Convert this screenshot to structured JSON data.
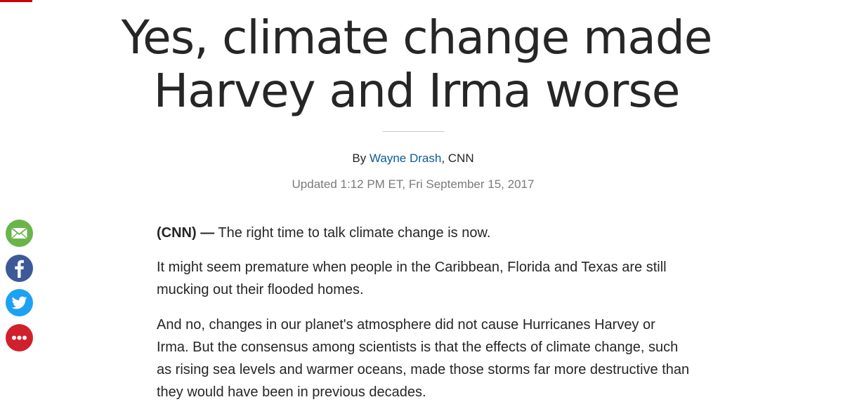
{
  "article": {
    "headline_line1": "Yes, climate change made",
    "headline_line2": "Harvey and Irma worse",
    "byline_prefix": "By ",
    "author": "Wayne Drash",
    "byline_suffix": ", CNN",
    "timestamp": "Updated 1:12 PM ET, Fri September 15, 2017",
    "source": "(CNN) —",
    "paragraphs": [
      " The right time to talk climate change is now.",
      "It might seem premature when people in the Caribbean, Florida and Texas are still mucking out their flooded homes.",
      "And no, changes in our planet's atmosphere did not cause Hurricanes Harvey or Irma. But the consensus among scientists is that the effects of climate change, such as rising sea levels and warmer oceans, made those storms far more destructive than they would have been in previous decades."
    ]
  },
  "share_rail": {
    "buttons": [
      {
        "icon": "email-icon",
        "color": "#6ab54a"
      },
      {
        "icon": "facebook-icon",
        "color": "#3c5a99"
      },
      {
        "icon": "twitter-icon",
        "color": "#1da1f2"
      },
      {
        "icon": "more-icon",
        "color": "#d0202c"
      }
    ]
  },
  "colors": {
    "brand_red": "#cc0000",
    "link_blue": "#0c5d94",
    "text": "#262626",
    "muted": "#7a7a7a"
  }
}
